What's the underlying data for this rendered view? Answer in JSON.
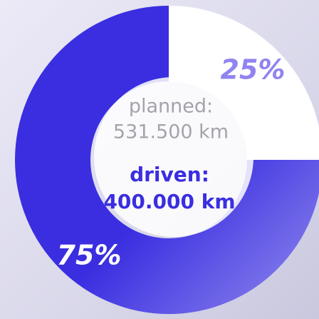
{
  "chart_data": {
    "type": "donut",
    "values": [
      75,
      25
    ],
    "value_labels": [
      "75%",
      "25%"
    ],
    "colors": [
      "#3a2ee0",
      "#ffffff"
    ],
    "label_colors": [
      "#ffffff",
      "#8f84f0"
    ],
    "annotations": [
      "planned:",
      "531.500 km",
      "driven:",
      "400.000 km"
    ]
  }
}
